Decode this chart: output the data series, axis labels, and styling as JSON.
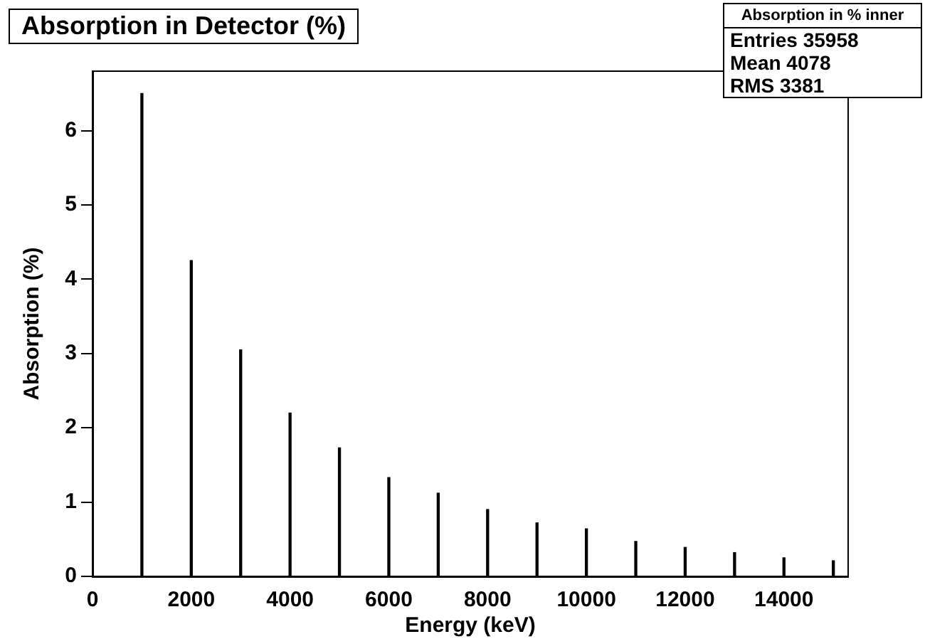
{
  "chart_data": {
    "type": "bar",
    "title": "Absorption in Detector (%)",
    "xlabel": "Energy (keV)",
    "ylabel": "Absorption (%)",
    "x": [
      1000,
      2000,
      3000,
      4000,
      5000,
      6000,
      7000,
      8000,
      9000,
      10000,
      11000,
      12000,
      13000,
      14000,
      15000
    ],
    "values": [
      6.5,
      4.25,
      3.05,
      2.2,
      1.73,
      1.33,
      1.12,
      0.9,
      0.72,
      0.64,
      0.47,
      0.39,
      0.32,
      0.25,
      0.21
    ],
    "color": "#000000",
    "xlim": [
      0,
      15300
    ],
    "xticks": [
      0,
      2000,
      4000,
      6000,
      8000,
      10000,
      12000,
      14000
    ],
    "ylim": [
      0,
      6.8
    ],
    "yticks": [
      0,
      1,
      2,
      3,
      4,
      5,
      6
    ],
    "grid": false,
    "legend": false,
    "annotations": [
      "Absorption in % inner",
      "Entries 35958",
      "Mean 4078",
      "RMS 3381"
    ]
  }
}
